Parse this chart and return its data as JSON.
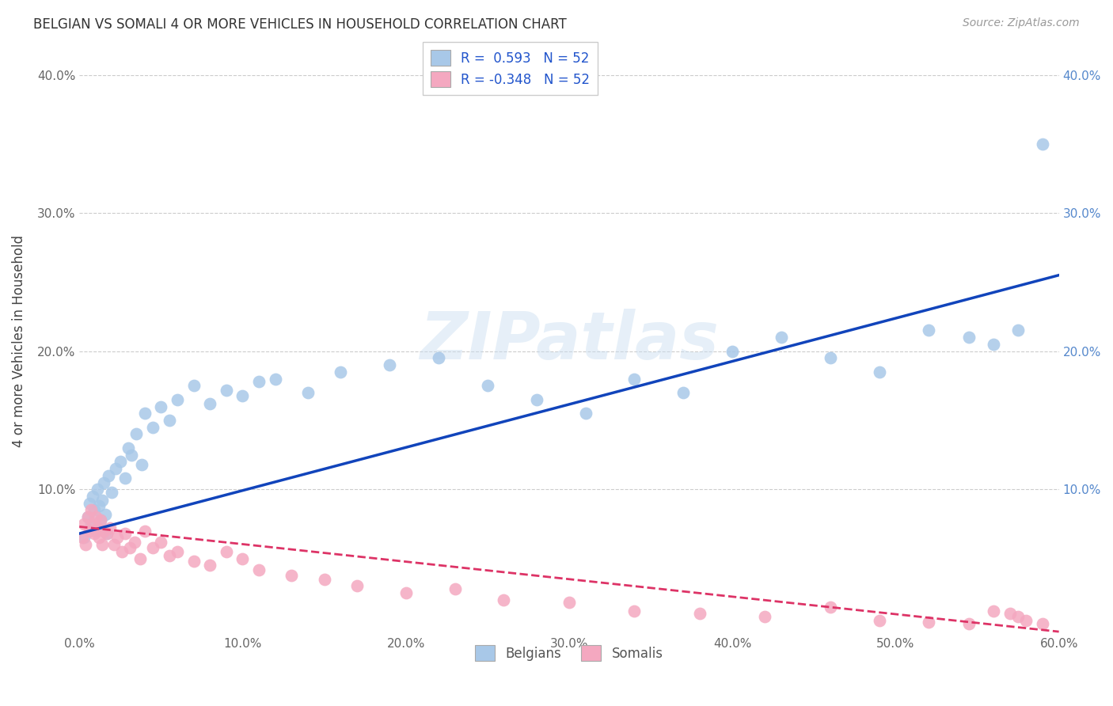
{
  "title": "BELGIAN VS SOMALI 4 OR MORE VEHICLES IN HOUSEHOLD CORRELATION CHART",
  "source": "Source: ZipAtlas.com",
  "ylabel": "4 or more Vehicles in Household",
  "xlabel": "",
  "xlim": [
    0.0,
    0.6
  ],
  "ylim": [
    -0.005,
    0.42
  ],
  "xticks": [
    0.0,
    0.1,
    0.2,
    0.3,
    0.4,
    0.5,
    0.6
  ],
  "yticks": [
    0.0,
    0.1,
    0.2,
    0.3,
    0.4
  ],
  "xticklabels": [
    "0.0%",
    "10.0%",
    "20.0%",
    "30.0%",
    "40.0%",
    "50.0%",
    "60.0%"
  ],
  "yticklabels_left": [
    "",
    "10.0%",
    "20.0%",
    "30.0%",
    "40.0%"
  ],
  "yticklabels_right": [
    "",
    "10.0%",
    "20.0%",
    "30.0%",
    "40.0%"
  ],
  "belgian_color": "#a8c8e8",
  "somali_color": "#f4a8c0",
  "belgian_line_color": "#1144bb",
  "somali_line_color": "#dd3366",
  "background_color": "#ffffff",
  "grid_color": "#cccccc",
  "watermark": "ZIPatlas",
  "belgians_x": [
    0.003,
    0.005,
    0.006,
    0.007,
    0.008,
    0.009,
    0.01,
    0.011,
    0.012,
    0.013,
    0.014,
    0.015,
    0.016,
    0.017,
    0.018,
    0.02,
    0.022,
    0.025,
    0.028,
    0.03,
    0.032,
    0.035,
    0.038,
    0.04,
    0.045,
    0.05,
    0.055,
    0.06,
    0.07,
    0.08,
    0.09,
    0.1,
    0.11,
    0.12,
    0.14,
    0.16,
    0.19,
    0.22,
    0.25,
    0.28,
    0.31,
    0.34,
    0.37,
    0.4,
    0.43,
    0.46,
    0.49,
    0.52,
    0.545,
    0.56,
    0.575,
    0.59
  ],
  "belgians_y": [
    0.065,
    0.08,
    0.09,
    0.075,
    0.095,
    0.085,
    0.07,
    0.1,
    0.088,
    0.078,
    0.092,
    0.105,
    0.082,
    0.068,
    0.11,
    0.098,
    0.115,
    0.12,
    0.108,
    0.13,
    0.125,
    0.14,
    0.118,
    0.155,
    0.145,
    0.16,
    0.15,
    0.165,
    0.175,
    0.162,
    0.172,
    0.168,
    0.178,
    0.18,
    0.17,
    0.185,
    0.19,
    0.195,
    0.175,
    0.165,
    0.155,
    0.18,
    0.17,
    0.2,
    0.21,
    0.195,
    0.185,
    0.215,
    0.21,
    0.205,
    0.215,
    0.35
  ],
  "somalis_x": [
    0.002,
    0.003,
    0.004,
    0.005,
    0.006,
    0.007,
    0.008,
    0.009,
    0.01,
    0.011,
    0.012,
    0.013,
    0.014,
    0.015,
    0.017,
    0.019,
    0.021,
    0.023,
    0.026,
    0.028,
    0.031,
    0.034,
    0.037,
    0.04,
    0.045,
    0.05,
    0.055,
    0.06,
    0.07,
    0.08,
    0.09,
    0.1,
    0.11,
    0.13,
    0.15,
    0.17,
    0.2,
    0.23,
    0.26,
    0.3,
    0.34,
    0.38,
    0.42,
    0.46,
    0.49,
    0.52,
    0.545,
    0.56,
    0.57,
    0.575,
    0.58,
    0.59
  ],
  "somalis_y": [
    0.065,
    0.075,
    0.06,
    0.08,
    0.07,
    0.085,
    0.075,
    0.068,
    0.08,
    0.072,
    0.065,
    0.078,
    0.06,
    0.07,
    0.068,
    0.072,
    0.06,
    0.065,
    0.055,
    0.068,
    0.058,
    0.062,
    0.05,
    0.07,
    0.058,
    0.062,
    0.052,
    0.055,
    0.048,
    0.045,
    0.055,
    0.05,
    0.042,
    0.038,
    0.035,
    0.03,
    0.025,
    0.028,
    0.02,
    0.018,
    0.012,
    0.01,
    0.008,
    0.015,
    0.005,
    0.004,
    0.003,
    0.012,
    0.01,
    0.008,
    0.005,
    0.003
  ],
  "blue_line_x0": 0.0,
  "blue_line_x1": 0.6,
  "blue_line_y0": 0.068,
  "blue_line_y1": 0.255,
  "pink_line_x0": 0.0,
  "pink_line_x1": 0.6,
  "pink_line_y0": 0.073,
  "pink_line_y1": -0.003
}
